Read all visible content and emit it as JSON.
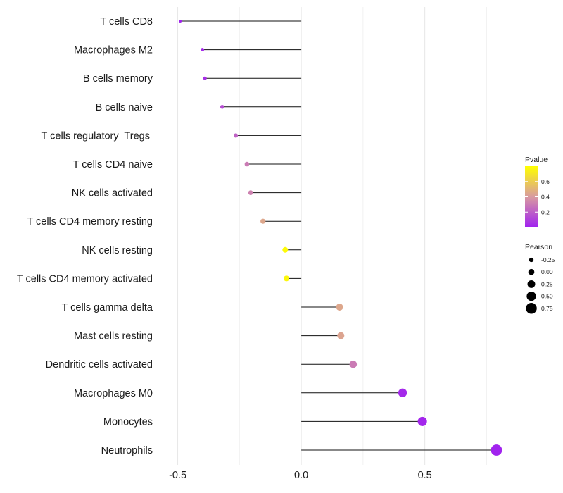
{
  "chart_data": {
    "type": "lollipop",
    "orientation": "horizontal",
    "categories": [
      "T cells CD8",
      "Macrophages M2",
      "B cells memory",
      "B cells naive",
      "T cells regulatory  Tregs ",
      "T cells CD4 naive",
      "NK cells activated",
      "T cells CD4 memory resting",
      "NK cells resting",
      "T cells CD4 memory activated",
      "T cells gamma delta",
      "Mast cells resting",
      "Dendritic cells activated",
      "Macrophages M0",
      "Monocytes",
      "Neutrophils"
    ],
    "values": [
      -0.49,
      -0.4,
      -0.39,
      -0.32,
      -0.265,
      -0.22,
      -0.205,
      -0.155,
      -0.065,
      -0.06,
      0.155,
      0.16,
      0.21,
      0.41,
      0.49,
      0.79
    ],
    "pvalues": [
      0.01,
      0.03,
      0.05,
      0.15,
      0.22,
      0.3,
      0.32,
      0.45,
      0.78,
      0.77,
      0.45,
      0.44,
      0.3,
      0.03,
      0.02,
      0.01
    ],
    "xlim": [
      -0.57,
      0.82
    ],
    "x_ticks": [
      -0.5,
      0.0,
      0.5
    ],
    "x_tick_labels": [
      "-0.5",
      "0.0",
      "0.5"
    ],
    "minor_grid": [
      -0.25,
      0.25,
      0.75
    ],
    "title": "",
    "xlabel": "",
    "ylabel": "",
    "legend": {
      "color": {
        "title": "Pvalue",
        "range": [
          0.0,
          0.8
        ],
        "ticks": [
          0.2,
          0.4,
          0.6
        ],
        "tick_labels": [
          "0.2",
          "0.4",
          "0.6"
        ],
        "low_color": "#a020f0",
        "mid_color": "#d89aa0",
        "high_color": "#ffff00"
      },
      "size": {
        "title": "Pearson",
        "values": [
          -0.25,
          0.0,
          0.25,
          0.5,
          0.75
        ],
        "labels": [
          "-0.25",
          "0.00",
          "0.25",
          "0.50",
          "0.75"
        ]
      }
    }
  }
}
